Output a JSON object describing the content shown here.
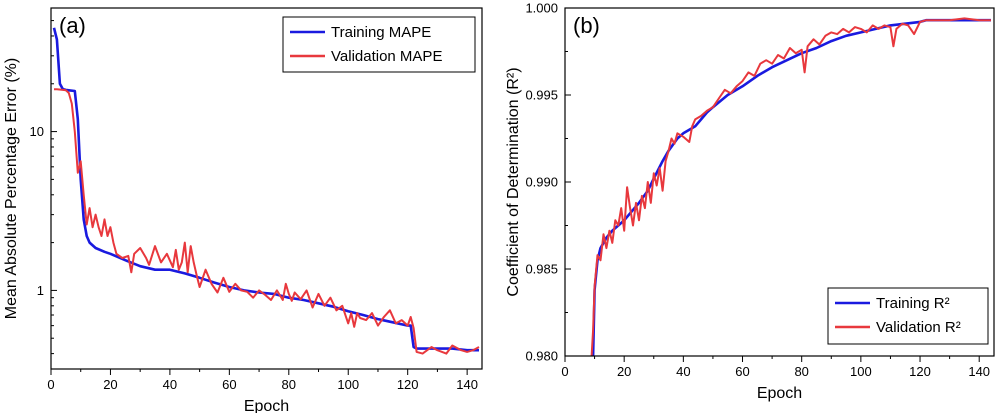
{
  "colors": {
    "training": "#1a1adf",
    "validation": "#e8383d"
  },
  "chart_data": [
    {
      "type": "line",
      "panel_label": "(a)",
      "xlabel": "Epoch",
      "ylabel": "Mean Absolute Percentage Error (%)",
      "xlim": [
        0,
        145
      ],
      "ylim": [
        0.32,
        60
      ],
      "yscale": "log",
      "x_ticks": [
        0,
        20,
        40,
        60,
        80,
        100,
        120,
        140
      ],
      "y_ticks": [
        1,
        10
      ],
      "legend_position": "top-right",
      "series": [
        {
          "name": "Training MAPE",
          "color": "#1a1adf",
          "x": [
            1,
            2,
            3,
            4,
            5,
            6,
            8,
            9,
            10,
            11,
            12,
            13,
            15,
            18,
            20,
            25,
            30,
            35,
            40,
            45,
            50,
            55,
            60,
            65,
            70,
            75,
            80,
            85,
            90,
            95,
            100,
            105,
            110,
            115,
            120,
            121,
            122,
            123,
            125,
            130,
            135,
            140,
            144
          ],
          "values": [
            45,
            38,
            20,
            18.5,
            18.3,
            18.2,
            18,
            12,
            5,
            2.8,
            2.2,
            2.0,
            1.85,
            1.75,
            1.7,
            1.55,
            1.42,
            1.35,
            1.35,
            1.28,
            1.2,
            1.12,
            1.05,
            1.0,
            0.97,
            0.95,
            0.9,
            0.87,
            0.83,
            0.79,
            0.74,
            0.7,
            0.66,
            0.63,
            0.6,
            0.6,
            0.44,
            0.43,
            0.43,
            0.43,
            0.43,
            0.42,
            0.42
          ]
        },
        {
          "name": "Validation MAPE",
          "color": "#e8383d",
          "x": [
            1,
            2,
            4,
            5,
            6,
            7,
            8,
            9,
            10,
            11,
            12,
            13,
            14,
            15,
            16,
            17,
            18,
            19,
            20,
            21,
            22,
            24,
            26,
            27,
            28,
            30,
            32,
            33,
            35,
            37,
            39,
            41,
            42,
            43,
            44,
            45,
            46,
            47,
            48,
            49,
            50,
            52,
            54,
            56,
            58,
            60,
            62,
            64,
            66,
            68,
            70,
            72,
            74,
            76,
            78,
            79,
            80,
            81,
            82,
            84,
            86,
            88,
            90,
            92,
            94,
            96,
            98,
            100,
            101,
            102,
            103,
            104,
            106,
            108,
            110,
            112,
            114,
            116,
            118,
            120,
            121,
            122,
            123,
            125,
            128,
            130,
            133,
            135,
            138,
            140,
            142,
            144
          ],
          "values": [
            18.5,
            18.5,
            18.3,
            18.2,
            17.5,
            15,
            10,
            5.5,
            6.5,
            4,
            2.6,
            3.3,
            2.5,
            3.0,
            2.5,
            2.2,
            2.8,
            2.2,
            2.5,
            2.0,
            1.7,
            1.6,
            1.65,
            1.3,
            1.7,
            1.85,
            1.6,
            1.45,
            1.9,
            1.5,
            1.7,
            1.4,
            1.8,
            1.35,
            1.5,
            2.0,
            1.3,
            1.9,
            1.5,
            1.25,
            1.05,
            1.35,
            1.1,
            0.97,
            1.2,
            0.98,
            1.1,
            1.0,
            0.98,
            0.9,
            1.0,
            0.94,
            0.87,
            1.0,
            0.87,
            1.1,
            0.95,
            0.86,
            0.97,
            0.88,
            1.0,
            0.78,
            0.95,
            0.8,
            0.9,
            0.75,
            0.8,
            0.62,
            0.72,
            0.59,
            0.72,
            0.67,
            0.65,
            0.72,
            0.6,
            0.68,
            0.75,
            0.62,
            0.65,
            0.6,
            0.68,
            0.58,
            0.41,
            0.4,
            0.44,
            0.42,
            0.4,
            0.45,
            0.42,
            0.41,
            0.42,
            0.44
          ]
        }
      ]
    },
    {
      "type": "line",
      "panel_label": "(b)",
      "xlabel": "Epoch",
      "ylabel": "Coefficient of Determination (R²)",
      "xlim": [
        0,
        145
      ],
      "ylim": [
        0.98,
        1.0
      ],
      "yscale": "linear",
      "x_ticks": [
        0,
        20,
        40,
        60,
        80,
        100,
        120,
        140
      ],
      "y_ticks": [
        0.98,
        0.985,
        0.99,
        0.995,
        1.0
      ],
      "y_tick_labels": [
        "0.980",
        "0.985",
        "0.990",
        "0.995",
        "1.000"
      ],
      "legend_position": "bottom-right",
      "series": [
        {
          "name": "Training R²",
          "color": "#1a1adf",
          "x": [
            9.5,
            10,
            11,
            12,
            14,
            16,
            18,
            20,
            22,
            25,
            28,
            30,
            33,
            35,
            38,
            40,
            42,
            44,
            46,
            48,
            50,
            55,
            60,
            65,
            70,
            75,
            80,
            85,
            90,
            95,
            100,
            105,
            110,
            115,
            120,
            122,
            125,
            130,
            135,
            140,
            144
          ],
          "values": [
            0.98,
            0.9838,
            0.9855,
            0.9862,
            0.9868,
            0.9872,
            0.9875,
            0.9878,
            0.9882,
            0.9888,
            0.9895,
            0.9902,
            0.9912,
            0.9918,
            0.9925,
            0.9928,
            0.993,
            0.9932,
            0.9936,
            0.994,
            0.9943,
            0.995,
            0.9955,
            0.9961,
            0.9966,
            0.997,
            0.9974,
            0.9977,
            0.9981,
            0.9984,
            0.9986,
            0.9988,
            0.999,
            0.9991,
            0.9992,
            0.9993,
            0.9993,
            0.9993,
            0.9993,
            0.9993,
            0.9993
          ]
        },
        {
          "name": "Validation R²",
          "color": "#e8383d",
          "x": [
            9,
            9.5,
            10,
            11,
            12,
            13,
            14,
            15,
            16,
            17,
            18,
            19,
            20,
            21,
            22,
            23,
            24,
            25,
            26,
            27,
            28,
            29,
            30,
            31,
            32,
            33,
            34,
            35,
            36,
            37,
            38,
            40,
            42,
            43,
            44,
            46,
            48,
            50,
            52,
            54,
            56,
            58,
            60,
            62,
            64,
            66,
            68,
            70,
            72,
            74,
            76,
            78,
            80,
            81,
            82,
            84,
            86,
            88,
            90,
            92,
            94,
            96,
            98,
            100,
            102,
            104,
            106,
            108,
            110,
            111,
            112,
            114,
            116,
            118,
            120,
            122,
            124,
            126,
            130,
            135,
            140,
            144
          ],
          "values": [
            0.98,
            0.9815,
            0.984,
            0.9858,
            0.9855,
            0.987,
            0.9862,
            0.9872,
            0.9865,
            0.9878,
            0.9875,
            0.9885,
            0.9872,
            0.9897,
            0.9885,
            0.9875,
            0.9888,
            0.9878,
            0.9892,
            0.9885,
            0.99,
            0.9888,
            0.9905,
            0.9898,
            0.9908,
            0.9895,
            0.9912,
            0.9918,
            0.9925,
            0.9922,
            0.9928,
            0.9926,
            0.9923,
            0.9932,
            0.9936,
            0.9938,
            0.9941,
            0.9943,
            0.9948,
            0.9953,
            0.9951,
            0.9955,
            0.9958,
            0.9963,
            0.9961,
            0.9968,
            0.997,
            0.9968,
            0.9973,
            0.9971,
            0.9977,
            0.9974,
            0.9976,
            0.9963,
            0.9978,
            0.9982,
            0.9979,
            0.9984,
            0.9986,
            0.9985,
            0.9988,
            0.9986,
            0.9989,
            0.9988,
            0.9986,
            0.999,
            0.9988,
            0.999,
            0.9989,
            0.9978,
            0.9988,
            0.9991,
            0.999,
            0.9985,
            0.9992,
            0.9993,
            0.9993,
            0.9993,
            0.9993,
            0.9994,
            0.9993,
            0.9993
          ]
        }
      ]
    }
  ]
}
